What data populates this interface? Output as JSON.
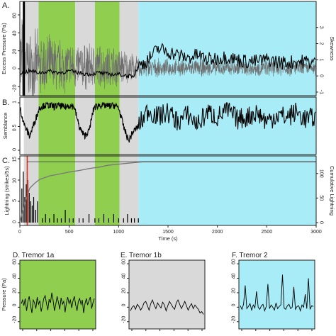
{
  "figure": {
    "panel_a_label": "A.",
    "panel_b_label": "B.",
    "panel_c_label": "C.",
    "panel_d_title": "D. Tremor 1a",
    "panel_e_title": "E. Tremor 1b",
    "panel_f_title": "F. Tremor 2"
  },
  "colors": {
    "tremor_1a": "#8fce4e",
    "tremor_1b": "#d9d9d9",
    "tremor_2": "#a8ecf7",
    "pressure_trace": "#6e6e6e",
    "skewness_line": "#000000",
    "lightning_bars": "#000000",
    "cumulative_line": "#7a7a7a",
    "red_marker": "#e0301e"
  },
  "chart_data": [
    {
      "id": "A",
      "type": "line",
      "title": "",
      "xlabel": "",
      "ylabel": "Excess Pressure (Pa)",
      "ylabel_right": "Skewness",
      "xlim": [
        0,
        3000
      ],
      "ylim": [
        -30,
        75
      ],
      "yticks": [
        -20,
        0,
        20,
        40,
        60
      ],
      "y2ticks": [
        -1,
        0,
        1,
        2,
        3
      ],
      "series": [
        {
          "role": "pressure",
          "x_range": [
            0,
            3000
          ],
          "envelope": [
            [
              0,
              70
            ],
            [
              60,
              40
            ],
            [
              180,
              38
            ],
            [
              560,
              28
            ],
            [
              1000,
              24
            ],
            [
              1200,
              12
            ],
            [
              1400,
              10
            ],
            [
              3000,
              9
            ]
          ]
        },
        {
          "role": "skewness",
          "x": [
            0,
            100,
            200,
            300,
            400,
            500,
            600,
            700,
            800,
            900,
            1000,
            1100,
            1150,
            1200,
            1300,
            1400,
            1500,
            1600,
            1700,
            1800,
            1900,
            2000,
            2100,
            2200,
            2300,
            2400,
            2500,
            2600,
            2700,
            2800,
            2900,
            3000
          ],
          "values": [
            0.2,
            0.3,
            0.2,
            0.3,
            0.2,
            0.3,
            0.2,
            0.1,
            0.2,
            0.1,
            0.1,
            0.0,
            0.0,
            0.6,
            1.0,
            1.7,
            1.5,
            1.3,
            1.1,
            1.3,
            1.0,
            1.1,
            1.2,
            1.0,
            0.9,
            0.9,
            1.0,
            0.9,
            0.8,
            0.9,
            0.9,
            0.8
          ]
        }
      ],
      "shaded_regions": [
        {
          "x": [
            190,
            560
          ],
          "color_key": "tremor_1a"
        },
        {
          "x": [
            760,
            1010
          ],
          "color_key": "tremor_1b_green"
        },
        {
          "x": [
            1200,
            3000
          ],
          "color_key": "tremor_2"
        }
      ]
    },
    {
      "id": "B",
      "type": "line",
      "title": "",
      "xlabel": "",
      "ylabel": "Semblance",
      "xlim": [
        0,
        3000
      ],
      "ylim": [
        0,
        1
      ],
      "yticks": [
        0,
        0.5,
        1
      ],
      "series": [
        {
          "role": "semblance",
          "x": [
            0,
            50,
            100,
            150,
            200,
            250,
            300,
            350,
            400,
            450,
            500,
            550,
            600,
            650,
            700,
            750,
            800,
            850,
            900,
            950,
            1000,
            1050,
            1100,
            1150,
            1200,
            1300,
            1400,
            1500,
            1600,
            1700,
            1800,
            1900,
            2000,
            2100,
            2200,
            2300,
            2400,
            2500,
            2600,
            2700,
            2800,
            2900,
            3000
          ],
          "values": [
            0.9,
            0.5,
            0.3,
            0.6,
            0.9,
            0.95,
            0.95,
            0.92,
            0.95,
            0.9,
            0.95,
            0.92,
            0.5,
            0.3,
            0.4,
            0.9,
            0.95,
            0.95,
            0.93,
            0.95,
            0.9,
            0.5,
            0.2,
            0.4,
            0.5,
            0.85,
            0.7,
            0.8,
            0.6,
            0.75,
            0.55,
            0.8,
            0.7,
            0.85,
            0.65,
            0.7,
            0.8,
            0.6,
            0.75,
            0.7,
            0.8,
            0.65,
            0.7
          ]
        }
      ]
    },
    {
      "id": "C",
      "type": "bar",
      "title": "",
      "xlabel": "Time (s)",
      "ylabel": "Lightning (strikes/5s)",
      "ylabel_right": "Cumulative Lightning",
      "xlim": [
        0,
        3000
      ],
      "ylim": [
        0,
        15
      ],
      "yticks": [
        0,
        5,
        10,
        15
      ],
      "y2lim": [
        0,
        130
      ],
      "y2ticks": [
        0,
        50,
        100
      ],
      "xticks": [
        0,
        500,
        1000,
        1500,
        2000,
        2500,
        3000
      ],
      "lightning": {
        "x": [
          20,
          35,
          50,
          65,
          80,
          95,
          110,
          125,
          140,
          160,
          180,
          230,
          260,
          300,
          345,
          380,
          420,
          460,
          500,
          540,
          600,
          640,
          700,
          760,
          800,
          850,
          900,
          950,
          1000,
          1050,
          1090,
          1130,
          1160,
          1200
        ],
        "values": [
          8,
          12,
          6,
          9,
          10,
          7,
          5,
          4,
          6,
          3,
          5,
          1,
          2,
          1,
          2,
          1,
          1,
          3,
          1,
          1,
          1,
          1,
          2,
          1,
          1,
          2,
          1,
          2,
          1,
          1,
          2,
          1,
          1,
          1
        ]
      },
      "cumulative": {
        "x": [
          0,
          50,
          100,
          150,
          200,
          300,
          400,
          500,
          600,
          700,
          800,
          900,
          1000,
          1100,
          1200,
          1250,
          3000
        ],
        "values": [
          0,
          40,
          70,
          80,
          88,
          95,
          99,
          103,
          106,
          110,
          113,
          117,
          119,
          121,
          123,
          124,
          124
        ]
      },
      "red_marker_x": 75
    },
    {
      "id": "D",
      "type": "line",
      "title": "D. Tremor 1a",
      "ylabel": "Pressure (Pa)",
      "ylim": [
        -30,
        65
      ],
      "yticks": [
        -20,
        0,
        20,
        40,
        60
      ],
      "values": [
        5,
        10,
        2,
        12,
        -5,
        8,
        15,
        3,
        -8,
        10,
        6,
        -2,
        14,
        4,
        9,
        -6,
        3,
        12,
        16,
        5,
        -4,
        11,
        6,
        20,
        10,
        -5,
        4,
        15,
        7,
        -3,
        13,
        4,
        8,
        -7,
        6,
        14,
        5,
        10,
        -1,
        9,
        15,
        3,
        -5,
        8,
        12,
        4,
        10,
        -8,
        5,
        12,
        3,
        9,
        14,
        -2,
        6,
        12
      ]
    },
    {
      "id": "E",
      "type": "line",
      "title": "E. Tremor 1b",
      "ylim": [
        -30,
        65
      ],
      "yticks": [
        -20,
        0,
        20,
        40,
        60
      ],
      "values": [
        -5,
        0,
        2,
        -3,
        4,
        1,
        -4,
        0,
        6,
        8,
        2,
        -4,
        5,
        10,
        3,
        -2,
        6,
        2,
        -1,
        7,
        3,
        -5,
        2,
        8,
        4,
        0,
        -3,
        6,
        10,
        4,
        -2,
        3,
        8,
        2,
        -4,
        1,
        5,
        -2,
        3,
        0,
        -3,
        -8,
        -6,
        -10
      ]
    },
    {
      "id": "F",
      "type": "line",
      "title": "F. Tremor 2",
      "ylim": [
        -30,
        65
      ],
      "yticks": [
        -20,
        0,
        20,
        40,
        60
      ],
      "values": [
        2,
        -3,
        4,
        30,
        -2,
        1,
        5,
        -4,
        3,
        -1,
        22,
        0,
        -3,
        2,
        4,
        -5,
        1,
        32,
        -2,
        3,
        0,
        -4,
        6,
        -2,
        1,
        3,
        45,
        -1,
        -3,
        2,
        4,
        -2,
        0,
        28,
        -3,
        1,
        2,
        -5,
        3,
        0,
        18,
        -2,
        40,
        -3,
        2,
        1
      ]
    }
  ]
}
